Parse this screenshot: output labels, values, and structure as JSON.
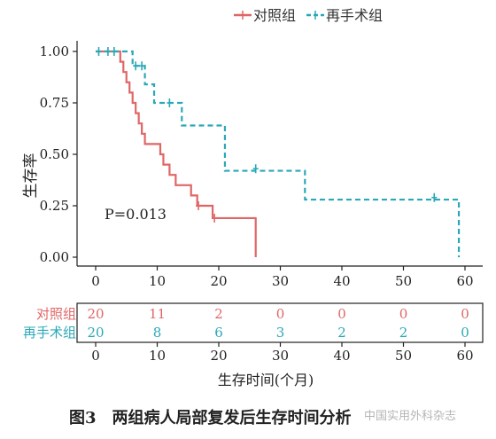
{
  "chart_data": {
    "type": "line",
    "subtype": "kaplan-meier",
    "caption": "图3　两组病人局部复发后生存时间分析",
    "watermark": "中国实用外科杂志",
    "ylabel": "生存率",
    "xlabel": "生存时间(个月)",
    "annotation": "P=0.013",
    "legend": {
      "position": "top",
      "entries": [
        "对照组",
        "再手术组"
      ]
    },
    "xlim": [
      0,
      60
    ],
    "ylim": [
      0,
      1
    ],
    "xticks": [
      0,
      10,
      20,
      30,
      40,
      50,
      60
    ],
    "yticks": [
      0,
      0.25,
      0.5,
      0.75,
      1.0
    ],
    "ytick_labels": [
      "0.00",
      "0.25",
      "0.50",
      "0.75",
      "1.00"
    ],
    "xtick_labels": [
      "0",
      "10",
      "20",
      "30",
      "40",
      "50",
      "60"
    ],
    "series": [
      {
        "name": "对照组",
        "color": "#e06666",
        "linestyle": "solid",
        "steps": [
          [
            0,
            1.0
          ],
          [
            4,
            0.95
          ],
          [
            4.5,
            0.9
          ],
          [
            5,
            0.85
          ],
          [
            5.5,
            0.8
          ],
          [
            6,
            0.75
          ],
          [
            6.5,
            0.7
          ],
          [
            7,
            0.65
          ],
          [
            7.5,
            0.6
          ],
          [
            8,
            0.55
          ],
          [
            10.5,
            0.5
          ],
          [
            11,
            0.45
          ],
          [
            12,
            0.4
          ],
          [
            13,
            0.35
          ],
          [
            15.5,
            0.3
          ],
          [
            16.5,
            0.25
          ],
          [
            19,
            0.19
          ],
          [
            26,
            0.19
          ],
          [
            26,
            0.0
          ]
        ],
        "censored": [
          [
            16.7,
            0.25
          ],
          [
            19.3,
            0.19
          ]
        ]
      },
      {
        "name": "再手术组",
        "color": "#2aa8b8",
        "linestyle": "dashed",
        "steps": [
          [
            0,
            1.0
          ],
          [
            6,
            0.93
          ],
          [
            8,
            0.84
          ],
          [
            9.5,
            0.75
          ],
          [
            14,
            0.64
          ],
          [
            21,
            0.42
          ],
          [
            34,
            0.28
          ],
          [
            59,
            0.28
          ],
          [
            59,
            0.0
          ]
        ],
        "censored": [
          [
            0.5,
            1.0
          ],
          [
            2,
            1.0
          ],
          [
            3,
            1.0
          ],
          [
            6.5,
            0.93
          ],
          [
            7.5,
            0.93
          ],
          [
            12,
            0.75
          ],
          [
            26,
            0.43
          ],
          [
            55,
            0.29
          ]
        ]
      }
    ],
    "risk_table": {
      "times": [
        "0",
        "10",
        "20",
        "30",
        "40",
        "50",
        "60"
      ],
      "rows": [
        {
          "label": "对照组",
          "values": [
            "20",
            "11",
            "2",
            "0",
            "0",
            "0",
            "0"
          ]
        },
        {
          "label": "再手术组",
          "values": [
            "20",
            "8",
            "6",
            "3",
            "2",
            "2",
            "0"
          ]
        }
      ]
    }
  }
}
